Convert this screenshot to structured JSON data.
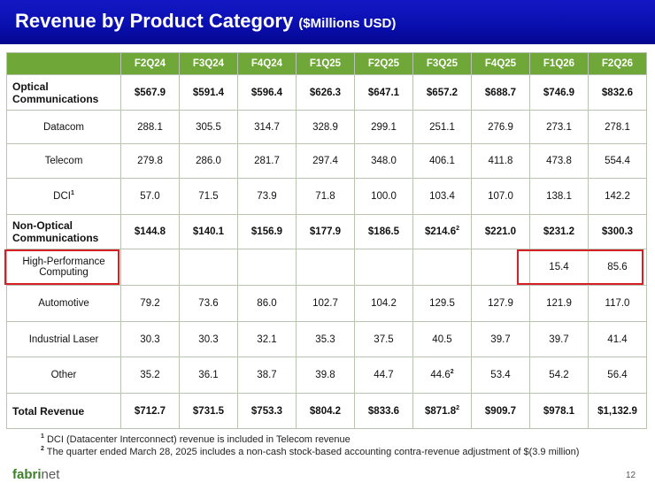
{
  "title": "Revenue by Product Category",
  "subtitle": "($Millions USD)",
  "columns": [
    "F2Q24",
    "F3Q24",
    "F4Q24",
    "F1Q25",
    "F2Q25",
    "F3Q25",
    "F4Q25",
    "F1Q26",
    "F2Q26"
  ],
  "rows": [
    {
      "label": "Optical Communications",
      "bold": true,
      "values": [
        "$567.9",
        "$591.4",
        "$596.4",
        "$626.3",
        "$647.1",
        "$657.2",
        "$688.7",
        "$746.9",
        "$832.6"
      ]
    },
    {
      "label": "Datacom",
      "values": [
        "288.1",
        "305.5",
        "314.7",
        "328.9",
        "299.1",
        "251.1",
        "276.9",
        "273.1",
        "278.1"
      ]
    },
    {
      "label": "Telecom",
      "values": [
        "279.8",
        "286.0",
        "281.7",
        "297.4",
        "348.0",
        "406.1",
        "411.8",
        "473.8",
        "554.4"
      ]
    },
    {
      "label": "DCI",
      "label_sup": "1",
      "values": [
        "57.0",
        "71.5",
        "73.9",
        "71.8",
        "100.0",
        "103.4",
        "107.0",
        "138.1",
        "142.2"
      ]
    },
    {
      "label": "Non-Optical Communications",
      "bold": true,
      "values": [
        "$144.8",
        "$140.1",
        "$156.9",
        "$177.9",
        "$186.5",
        "$214.6",
        "$221.0",
        "$231.2",
        "$300.3"
      ],
      "sups": {
        "5": "2"
      }
    },
    {
      "label": "High-Performance Computing",
      "values": [
        "",
        "",
        "",
        "",
        "",
        "",
        "",
        "15.4",
        "85.6"
      ]
    },
    {
      "label": "Automotive",
      "values": [
        "79.2",
        "73.6",
        "86.0",
        "102.7",
        "104.2",
        "129.5",
        "127.9",
        "121.9",
        "117.0"
      ]
    },
    {
      "label": "Industrial Laser",
      "values": [
        "30.3",
        "30.3",
        "32.1",
        "35.3",
        "37.5",
        "40.5",
        "39.7",
        "39.7",
        "41.4"
      ]
    },
    {
      "label": "Other",
      "values": [
        "35.2",
        "36.1",
        "38.7",
        "39.8",
        "44.7",
        "44.6",
        "53.4",
        "54.2",
        "56.4"
      ],
      "sups": {
        "5": "2"
      }
    },
    {
      "label": "Total Revenue",
      "bold": true,
      "values": [
        "$712.7",
        "$731.5",
        "$753.3",
        "$804.2",
        "$833.6",
        "$871.8",
        "$909.7",
        "$978.1",
        "$1,132.9"
      ],
      "sups": {
        "5": "2"
      }
    }
  ],
  "footnotes": [
    {
      "mark": "1",
      "text": "DCI (Datacenter Interconnect) revenue is included in Telecom revenue"
    },
    {
      "mark": "2",
      "text": "The quarter ended March 28, 2025 includes a non-cash stock-based accounting contra-revenue adjustment of $(3.9 million)"
    }
  ],
  "logo": {
    "brand": "fabri",
    "suffix": "net"
  },
  "page_number": "12",
  "colors": {
    "header": "#0a0fb0",
    "table_header": "#6fa838",
    "highlight": "#d61e26",
    "logo": "#3d7f2a"
  }
}
